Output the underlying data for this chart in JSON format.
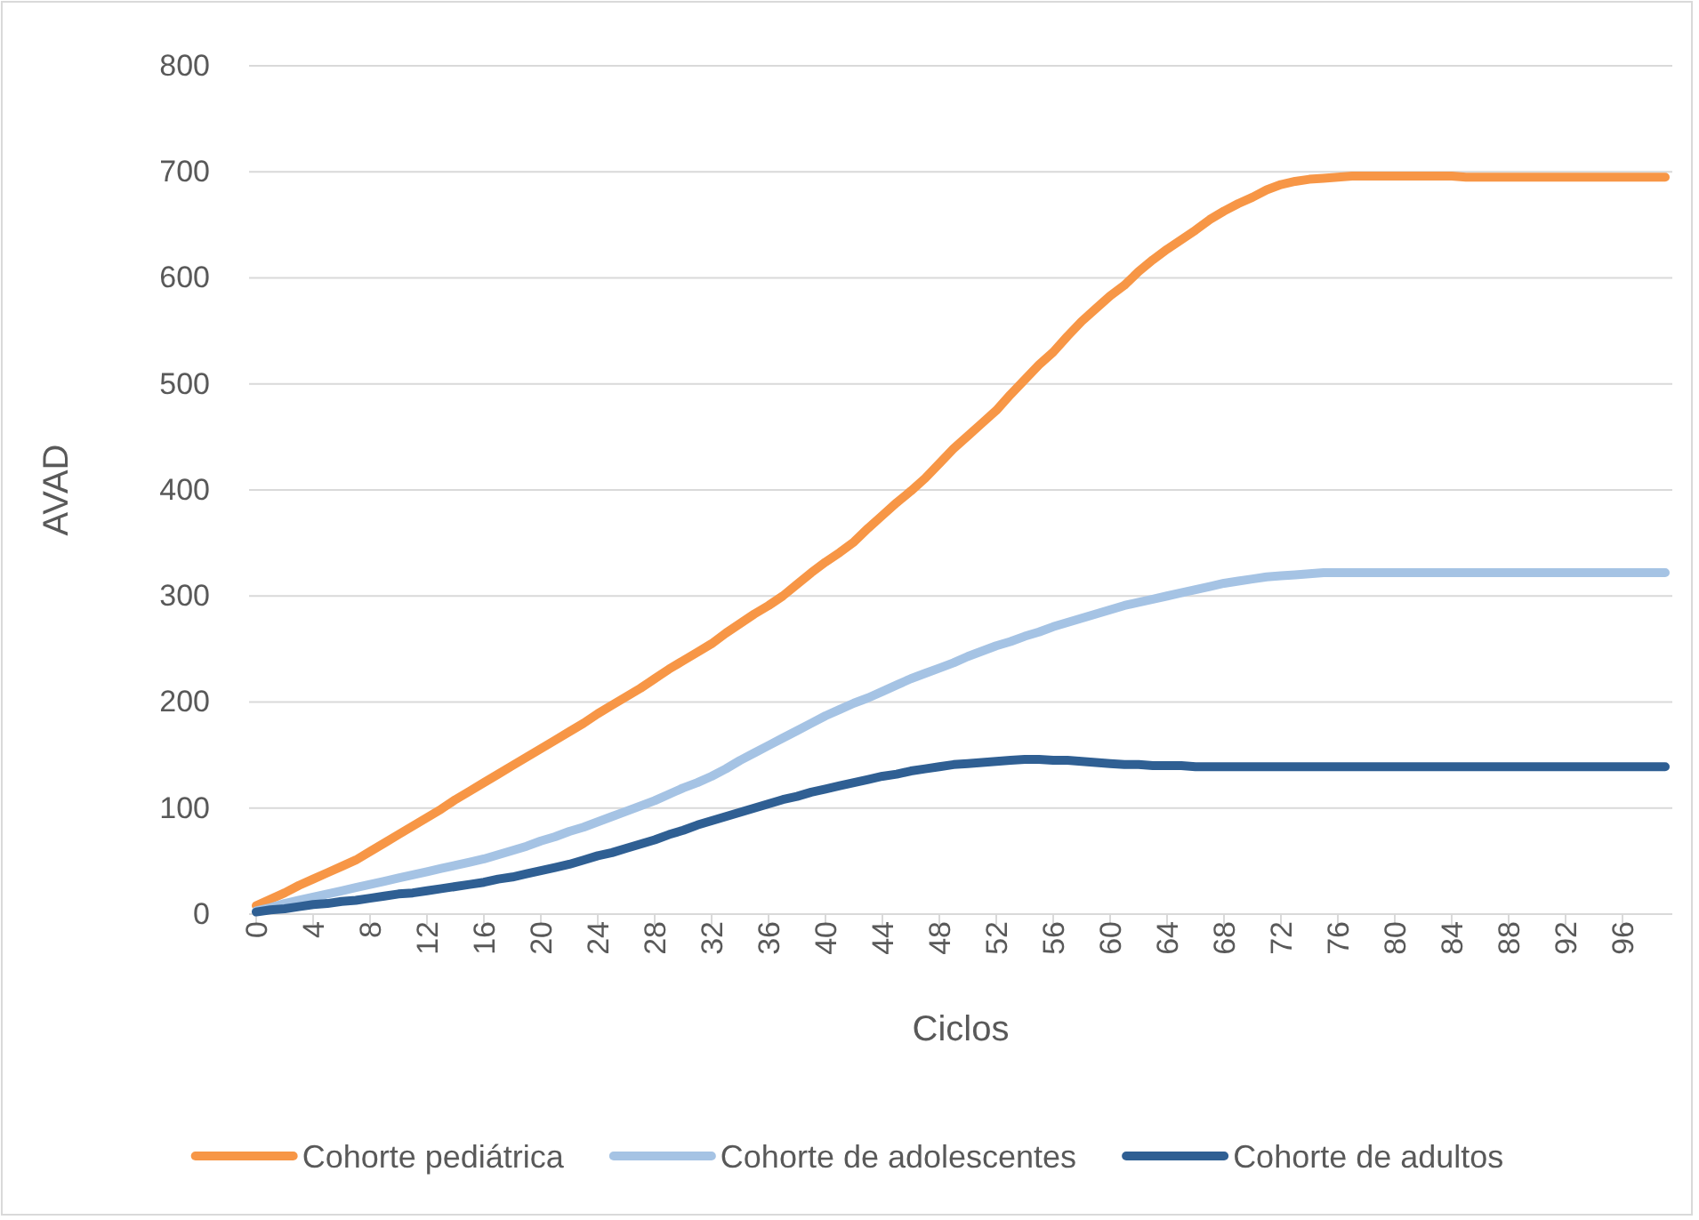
{
  "chart_data": {
    "type": "line",
    "xlabel": "Ciclos",
    "ylabel": "AVAD",
    "categories": [
      "0",
      null,
      null,
      null,
      "4",
      null,
      null,
      null,
      "8",
      null,
      null,
      null,
      "12",
      null,
      null,
      null,
      "16",
      null,
      null,
      null,
      "20",
      null,
      null,
      null,
      "24",
      null,
      null,
      null,
      "28",
      null,
      null,
      null,
      "32",
      null,
      null,
      null,
      "36",
      null,
      null,
      null,
      "40",
      null,
      null,
      null,
      "44",
      null,
      null,
      null,
      "48",
      null,
      null,
      null,
      "52",
      null,
      null,
      null,
      "56",
      null,
      null,
      null,
      "60",
      null,
      null,
      null,
      "64",
      null,
      null,
      null,
      "68",
      null,
      null,
      null,
      "72",
      null,
      null,
      null,
      "76",
      null,
      null,
      null,
      "80",
      null,
      null,
      null,
      "84",
      null,
      null,
      null,
      "88",
      null,
      null,
      null,
      "92",
      null,
      null,
      null,
      "96",
      null,
      null,
      null
    ],
    "ylim": [
      0,
      800
    ],
    "yticks": [
      0,
      100,
      200,
      300,
      400,
      500,
      600,
      700,
      800
    ],
    "grid": "y",
    "legend": "bottom",
    "marker": "none",
    "line_style": "solid",
    "series": [
      {
        "name": "Cohorte pediátrica",
        "color": "#f79646",
        "values": [
          8,
          14,
          20,
          27,
          33,
          39,
          45,
          51,
          59,
          67,
          75,
          83,
          91,
          99,
          108,
          116,
          124,
          132,
          140,
          148,
          156,
          164,
          172,
          180,
          189,
          197,
          205,
          213,
          222,
          231,
          239,
          247,
          255,
          265,
          274,
          283,
          291,
          300,
          311,
          322,
          332,
          341,
          351,
          364,
          376,
          388,
          399,
          411,
          425,
          439,
          451,
          463,
          475,
          490,
          504,
          518,
          530,
          545,
          559,
          571,
          583,
          593,
          606,
          617,
          627,
          636,
          645,
          655,
          663,
          670,
          676,
          683,
          688,
          691,
          693,
          694,
          695,
          696,
          696,
          696,
          696,
          696,
          696,
          696,
          696,
          695,
          695,
          695,
          695,
          695,
          695,
          695,
          695,
          695,
          695,
          695,
          695,
          695,
          695,
          695
        ]
      },
      {
        "name": "Cohorte de adolescentes",
        "color": "#a5c3e4",
        "values": [
          3,
          6,
          10,
          13,
          16,
          19,
          22,
          25,
          28,
          31,
          34,
          37,
          40,
          43,
          46,
          49,
          52,
          56,
          60,
          64,
          69,
          73,
          78,
          82,
          87,
          92,
          97,
          102,
          107,
          113,
          119,
          124,
          130,
          137,
          145,
          152,
          159,
          166,
          173,
          180,
          187,
          193,
          199,
          204,
          210,
          216,
          222,
          227,
          232,
          237,
          243,
          248,
          253,
          257,
          262,
          266,
          271,
          275,
          279,
          283,
          287,
          291,
          294,
          297,
          300,
          303,
          306,
          309,
          312,
          314,
          316,
          318,
          319,
          320,
          321,
          322,
          322,
          322,
          322,
          322,
          322,
          322,
          322,
          322,
          322,
          322,
          322,
          322,
          322,
          322,
          322,
          322,
          322,
          322,
          322,
          322,
          322,
          322,
          322,
          322
        ]
      },
      {
        "name": "Cohorte de adultos",
        "color": "#2f5f93",
        "values": [
          2,
          4,
          5,
          7,
          9,
          10,
          12,
          13,
          15,
          17,
          19,
          20,
          22,
          24,
          26,
          28,
          30,
          33,
          35,
          38,
          41,
          44,
          47,
          51,
          55,
          58,
          62,
          66,
          70,
          75,
          79,
          84,
          88,
          92,
          96,
          100,
          104,
          108,
          111,
          115,
          118,
          121,
          124,
          127,
          130,
          132,
          135,
          137,
          139,
          141,
          142,
          143,
          144,
          145,
          146,
          146,
          145,
          145,
          144,
          143,
          142,
          141,
          141,
          140,
          140,
          140,
          139,
          139,
          139,
          139,
          139,
          139,
          139,
          139,
          139,
          139,
          139,
          139,
          139,
          139,
          139,
          139,
          139,
          139,
          139,
          139,
          139,
          139,
          139,
          139,
          139,
          139,
          139,
          139,
          139,
          139,
          139,
          139,
          139,
          139
        ]
      }
    ]
  }
}
